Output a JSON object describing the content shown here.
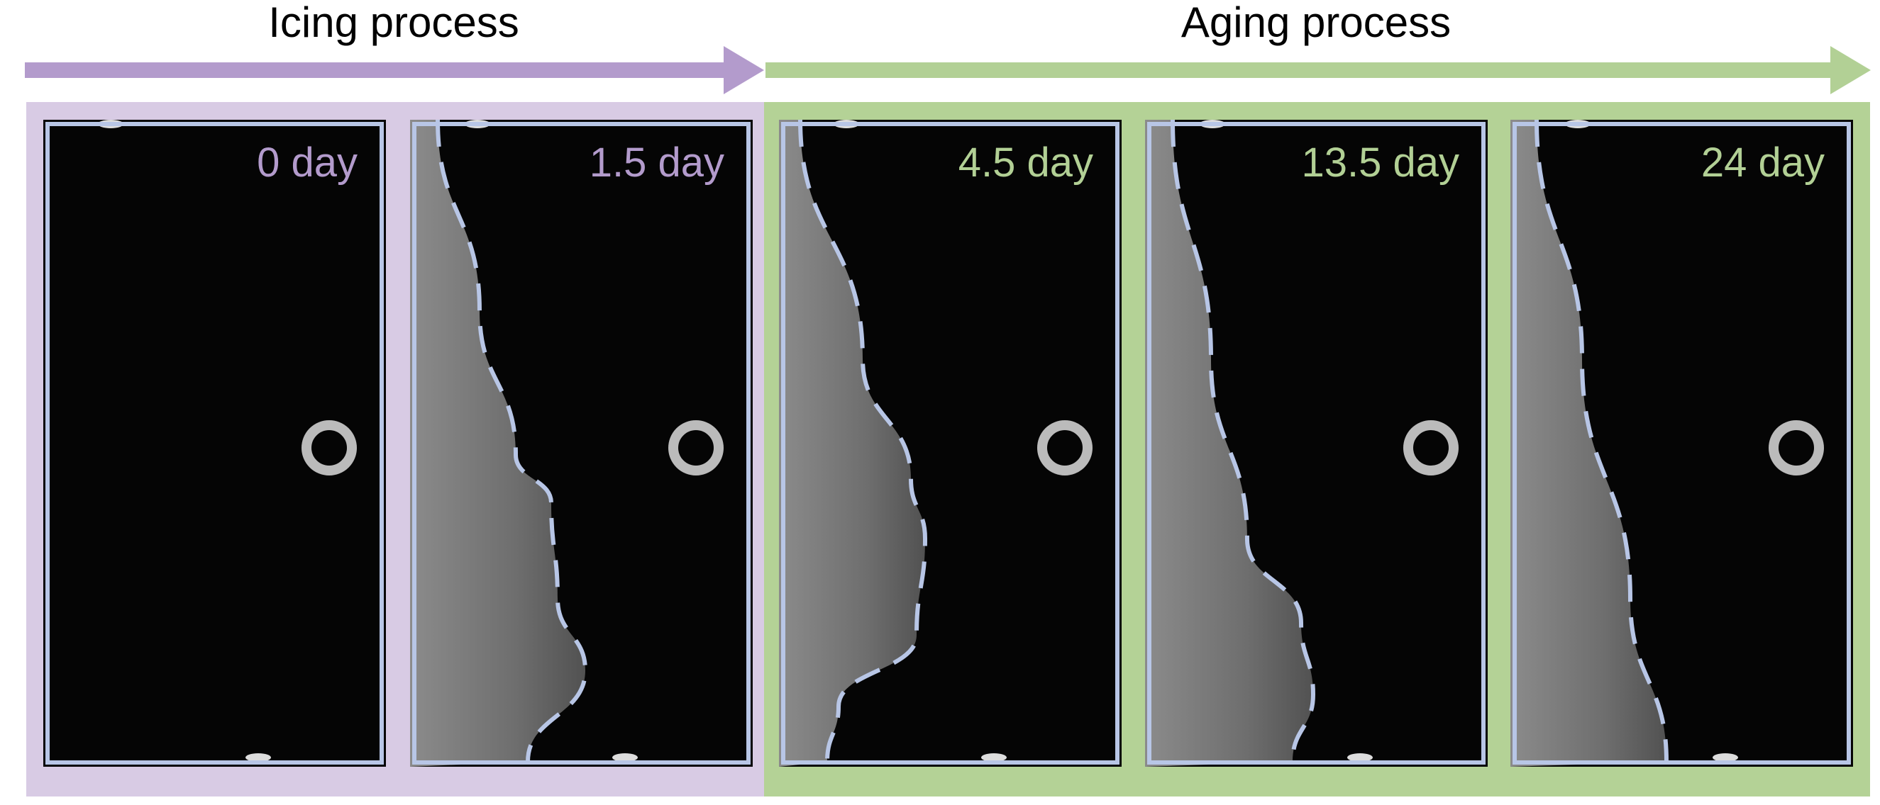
{
  "colors": {
    "icing": "#b39bcc",
    "icing_bg": "#d8cbe4",
    "aging": "#b2d095",
    "aging_bg": "#b4d296",
    "outline": "#b8c6e6"
  },
  "stages": [
    {
      "title": "Icing process"
    },
    {
      "title": "Aging process"
    }
  ],
  "panels": [
    {
      "label": "0 day",
      "stage": "icing"
    },
    {
      "label": "1.5 day",
      "stage": "icing"
    },
    {
      "label": "4.5 day",
      "stage": "aging"
    },
    {
      "label": "13.5 day",
      "stage": "aging"
    },
    {
      "label": "24 day",
      "stage": "aging"
    }
  ]
}
